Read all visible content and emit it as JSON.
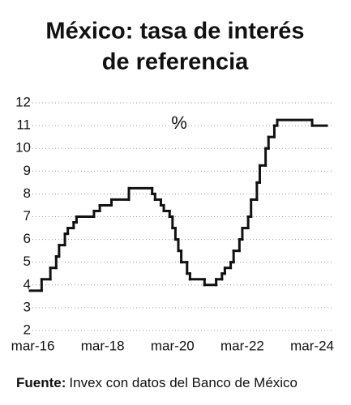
{
  "chart_data": {
    "type": "step",
    "title_lines": [
      "México: tasa de interés",
      "de referencia"
    ],
    "annotation": "%",
    "source_label": "Fuente:",
    "source": "Invex con datos del Banco de México",
    "x": [
      "2016-02",
      "2016-06",
      "2016-09",
      "2016-11",
      "2016-12",
      "2017-02",
      "2017-03",
      "2017-05",
      "2017-06",
      "2017-12",
      "2018-02",
      "2018-06",
      "2018-12",
      "2019-08",
      "2019-09",
      "2019-11",
      "2019-12",
      "2020-02",
      "2020-03",
      "2020-04",
      "2020-05",
      "2020-06",
      "2020-08",
      "2020-09",
      "2021-02",
      "2021-06",
      "2021-08",
      "2021-09",
      "2021-11",
      "2021-12",
      "2022-02",
      "2022-03",
      "2022-05",
      "2022-06",
      "2022-08",
      "2022-09",
      "2022-11",
      "2022-12",
      "2023-02",
      "2023-03",
      "2024-03",
      "2024-08"
    ],
    "series": [
      {
        "color": "#111111",
        "values": [
          3.75,
          4.25,
          4.75,
          5.25,
          5.75,
          6.25,
          6.5,
          6.75,
          7,
          7.25,
          7.5,
          7.75,
          8.25,
          8,
          7.75,
          7.5,
          7.25,
          7,
          6.5,
          6,
          5.5,
          5,
          4.5,
          4.25,
          4,
          4.25,
          4.5,
          4.75,
          5,
          5.5,
          6,
          6.5,
          7,
          7.75,
          8.5,
          9.25,
          10,
          10.5,
          11,
          11.25,
          11,
          11
        ]
      }
    ],
    "xlim": [
      "2016-02",
      "2024-08"
    ],
    "xticks": [
      {
        "value": "2016-03",
        "label": "mar-16"
      },
      {
        "value": "2018-03",
        "label": "mar-18"
      },
      {
        "value": "2020-03",
        "label": "mar-20"
      },
      {
        "value": "2022-03",
        "label": "mar-22"
      },
      {
        "value": "2024-03",
        "label": "mar-24"
      }
    ],
    "ylim": [
      2,
      12
    ],
    "yticks": [
      2,
      3,
      4,
      5,
      6,
      7,
      8,
      9,
      10,
      11,
      12
    ],
    "grid": true
  }
}
